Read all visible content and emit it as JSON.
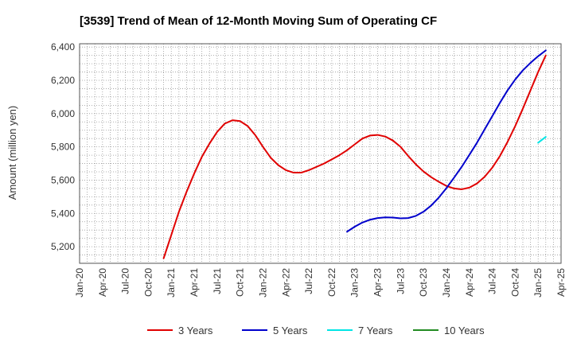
{
  "chart_data": {
    "type": "line",
    "title": "[3539]  Trend of Mean of 12-Month Moving Sum of Operating CF",
    "xlabel": "",
    "ylabel": "Amount (million yen)",
    "x_ticks": [
      "Jan-20",
      "Apr-20",
      "Jul-20",
      "Oct-20",
      "Jan-21",
      "Apr-21",
      "Jul-21",
      "Oct-21",
      "Jan-22",
      "Apr-22",
      "Jul-22",
      "Oct-22",
      "Jan-23",
      "Apr-23",
      "Jul-23",
      "Oct-23",
      "Jan-24",
      "Apr-24",
      "Jul-24",
      "Oct-24",
      "Jan-25",
      "Apr-25"
    ],
    "y_ticks": [
      "5,200",
      "5,400",
      "5,600",
      "5,800",
      "6,000",
      "6,200",
      "6,400"
    ],
    "ylim": [
      5100,
      6420
    ],
    "x_range": [
      "2020-01",
      "2025-04"
    ],
    "grid": true,
    "legend_position": "bottom",
    "series": [
      {
        "name": "3 Years",
        "color": "#e00000",
        "points": [
          [
            "2020-12",
            5130
          ],
          [
            "2021-01",
            5270
          ],
          [
            "2021-02",
            5410
          ],
          [
            "2021-03",
            5530
          ],
          [
            "2021-04",
            5640
          ],
          [
            "2021-05",
            5740
          ],
          [
            "2021-06",
            5820
          ],
          [
            "2021-07",
            5890
          ],
          [
            "2021-08",
            5940
          ],
          [
            "2021-09",
            5960
          ],
          [
            "2021-10",
            5955
          ],
          [
            "2021-11",
            5925
          ],
          [
            "2021-12",
            5870
          ],
          [
            "2022-01",
            5800
          ],
          [
            "2022-02",
            5735
          ],
          [
            "2022-03",
            5690
          ],
          [
            "2022-04",
            5660
          ],
          [
            "2022-05",
            5645
          ],
          [
            "2022-06",
            5645
          ],
          [
            "2022-07",
            5660
          ],
          [
            "2022-08",
            5680
          ],
          [
            "2022-09",
            5700
          ],
          [
            "2022-10",
            5725
          ],
          [
            "2022-11",
            5750
          ],
          [
            "2022-12",
            5780
          ],
          [
            "2023-01",
            5815
          ],
          [
            "2023-02",
            5850
          ],
          [
            "2023-03",
            5868
          ],
          [
            "2023-04",
            5872
          ],
          [
            "2023-05",
            5862
          ],
          [
            "2023-06",
            5838
          ],
          [
            "2023-07",
            5800
          ],
          [
            "2023-08",
            5745
          ],
          [
            "2023-09",
            5695
          ],
          [
            "2023-10",
            5652
          ],
          [
            "2023-11",
            5618
          ],
          [
            "2023-12",
            5590
          ],
          [
            "2024-01",
            5565
          ],
          [
            "2024-02",
            5550
          ],
          [
            "2024-03",
            5545
          ],
          [
            "2024-04",
            5555
          ],
          [
            "2024-05",
            5580
          ],
          [
            "2024-06",
            5620
          ],
          [
            "2024-07",
            5675
          ],
          [
            "2024-08",
            5745
          ],
          [
            "2024-09",
            5830
          ],
          [
            "2024-10",
            5925
          ],
          [
            "2024-11",
            6030
          ],
          [
            "2024-12",
            6140
          ],
          [
            "2025-01",
            6250
          ],
          [
            "2025-02",
            6350
          ]
        ]
      },
      {
        "name": "5 Years",
        "color": "#0000cc",
        "points": [
          [
            "2022-12",
            5290
          ],
          [
            "2023-01",
            5320
          ],
          [
            "2023-02",
            5345
          ],
          [
            "2023-03",
            5362
          ],
          [
            "2023-04",
            5372
          ],
          [
            "2023-05",
            5376
          ],
          [
            "2023-06",
            5375
          ],
          [
            "2023-07",
            5370
          ],
          [
            "2023-08",
            5372
          ],
          [
            "2023-09",
            5385
          ],
          [
            "2023-10",
            5410
          ],
          [
            "2023-11",
            5447
          ],
          [
            "2023-12",
            5495
          ],
          [
            "2024-01",
            5552
          ],
          [
            "2024-02",
            5615
          ],
          [
            "2024-03",
            5680
          ],
          [
            "2024-04",
            5752
          ],
          [
            "2024-05",
            5825
          ],
          [
            "2024-06",
            5905
          ],
          [
            "2024-07",
            5985
          ],
          [
            "2024-08",
            6065
          ],
          [
            "2024-09",
            6140
          ],
          [
            "2024-10",
            6205
          ],
          [
            "2024-11",
            6260
          ],
          [
            "2024-12",
            6305
          ],
          [
            "2025-01",
            6345
          ],
          [
            "2025-02",
            6380
          ]
        ]
      },
      {
        "name": "7 Years",
        "color": "#00e5e5",
        "points": [
          [
            "2025-01",
            5825
          ],
          [
            "2025-02",
            5860
          ]
        ]
      },
      {
        "name": "10 Years",
        "color": "#228b22",
        "points": []
      }
    ]
  }
}
